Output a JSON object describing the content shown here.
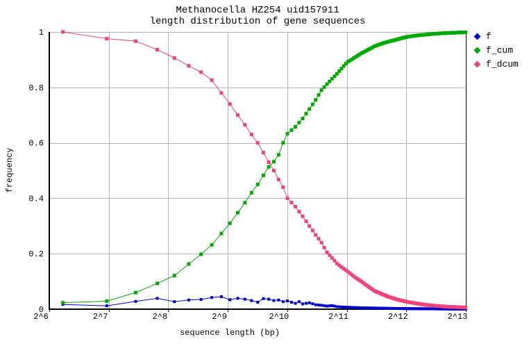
{
  "title": {
    "line1": "Methanocella HZ254 uid157911",
    "line2": "length distribution of gene sequences"
  },
  "axes": {
    "x_label": "sequence length (bp)",
    "y_label": "frequency",
    "x_ticks": [
      {
        "label": "2^6",
        "exp": 6
      },
      {
        "label": "2^7",
        "exp": 7
      },
      {
        "label": "2^8",
        "exp": 8
      },
      {
        "label": "2^9",
        "exp": 9
      },
      {
        "label": "2^10",
        "exp": 10
      },
      {
        "label": "2^11",
        "exp": 11
      },
      {
        "label": "2^12",
        "exp": 12
      },
      {
        "label": "2^13",
        "exp": 13
      }
    ],
    "y_ticks": [
      {
        "label": "1",
        "value": 1
      },
      {
        "label": "0.8",
        "value": 0.8
      },
      {
        "label": "0.6",
        "value": 0.6
      },
      {
        "label": "0.4",
        "value": 0.4
      },
      {
        "label": "0.2",
        "value": 0.2
      },
      {
        "label": "0",
        "value": 0
      }
    ]
  },
  "legend": [
    {
      "label": "f",
      "color": "#0000d0"
    },
    {
      "label": "f_cum",
      "color": "#00aa00"
    },
    {
      "label": "f_dcum",
      "color": "#ef4379"
    }
  ],
  "colors": {
    "grid": "#b3b3b3",
    "axis": "#000000",
    "background": "#ffffff"
  },
  "chart_data": {
    "type": "line",
    "title": "Methanocella HZ254 uid157911 - length distribution of gene sequences",
    "xlabel": "sequence length (bp)",
    "ylabel": "frequency",
    "x_scale": "log2",
    "x_range_exp": [
      6,
      13
    ],
    "y_range": [
      0,
      1
    ],
    "grid": true,
    "legend_position": "top-right-outside",
    "marker": "square",
    "sample_bp": {
      "start": 75,
      "step": 50,
      "end": 8175
    },
    "series": [
      {
        "name": "f",
        "color": "#0000d0",
        "marker_size": 4,
        "anchors": [
          [
            75,
            0.017
          ],
          [
            125,
            0.012
          ],
          [
            175,
            0.028
          ],
          [
            225,
            0.039
          ],
          [
            275,
            0.027
          ],
          [
            325,
            0.033
          ],
          [
            375,
            0.035
          ],
          [
            425,
            0.042
          ],
          [
            475,
            0.045
          ],
          [
            525,
            0.034
          ],
          [
            575,
            0.039
          ],
          [
            625,
            0.036
          ],
          [
            675,
            0.031
          ],
          [
            725,
            0.025
          ],
          [
            775,
            0.038
          ],
          [
            825,
            0.036
          ],
          [
            875,
            0.031
          ],
          [
            925,
            0.033
          ],
          [
            975,
            0.027
          ],
          [
            1025,
            0.03
          ],
          [
            1075,
            0.025
          ],
          [
            1125,
            0.021
          ],
          [
            1175,
            0.027
          ],
          [
            1225,
            0.019
          ],
          [
            1325,
            0.023
          ],
          [
            1425,
            0.016
          ],
          [
            1525,
            0.014
          ],
          [
            1625,
            0.011
          ],
          [
            1725,
            0.013
          ],
          [
            1825,
            0.009
          ],
          [
            1925,
            0.008
          ],
          [
            2050,
            0.007
          ],
          [
            2425,
            0.005
          ],
          [
            2825,
            0.004
          ],
          [
            3325,
            0.003
          ],
          [
            4100,
            0.002
          ],
          [
            5075,
            0.0015
          ],
          [
            6075,
            0.001
          ],
          [
            7075,
            0.0008
          ],
          [
            8175,
            0.0005
          ]
        ]
      },
      {
        "name": "f_cum",
        "color": "#00aa00",
        "marker_size": 5,
        "anchors": [
          [
            75,
            0.023
          ],
          [
            125,
            0.029
          ],
          [
            175,
            0.06
          ],
          [
            225,
            0.093
          ],
          [
            275,
            0.121
          ],
          [
            325,
            0.163
          ],
          [
            375,
            0.198
          ],
          [
            425,
            0.232
          ],
          [
            475,
            0.273
          ],
          [
            525,
            0.31
          ],
          [
            575,
            0.348
          ],
          [
            625,
            0.384
          ],
          [
            675,
            0.42
          ],
          [
            725,
            0.45
          ],
          [
            775,
            0.483
          ],
          [
            825,
            0.513
          ],
          [
            875,
            0.532
          ],
          [
            925,
            0.557
          ],
          [
            975,
            0.6
          ],
          [
            1025,
            0.633
          ],
          [
            1125,
            0.658
          ],
          [
            1225,
            0.688
          ],
          [
            1325,
            0.722
          ],
          [
            1425,
            0.755
          ],
          [
            1525,
            0.79
          ],
          [
            1625,
            0.812
          ],
          [
            1725,
            0.831
          ],
          [
            1825,
            0.849
          ],
          [
            1925,
            0.868
          ],
          [
            2050,
            0.89
          ],
          [
            2225,
            0.906
          ],
          [
            2425,
            0.923
          ],
          [
            2625,
            0.936
          ],
          [
            2825,
            0.948
          ],
          [
            3075,
            0.958
          ],
          [
            3325,
            0.965
          ],
          [
            3675,
            0.973
          ],
          [
            4100,
            0.982
          ],
          [
            4575,
            0.987
          ],
          [
            5075,
            0.99
          ],
          [
            5575,
            0.993
          ],
          [
            6075,
            0.995
          ],
          [
            6575,
            0.996
          ],
          [
            7075,
            0.997
          ],
          [
            7575,
            0.998
          ],
          [
            8175,
            0.999
          ]
        ]
      },
      {
        "name": "f_dcum",
        "color": "#ef4379",
        "marker_size": 5,
        "anchors": [
          [
            75,
            1.0
          ],
          [
            125,
            0.976
          ],
          [
            175,
            0.967
          ],
          [
            225,
            0.936
          ],
          [
            275,
            0.906
          ],
          [
            325,
            0.878
          ],
          [
            375,
            0.855
          ],
          [
            425,
            0.826
          ],
          [
            475,
            0.78
          ],
          [
            525,
            0.74
          ],
          [
            575,
            0.7
          ],
          [
            625,
            0.665
          ],
          [
            675,
            0.63
          ],
          [
            725,
            0.6
          ],
          [
            775,
            0.565
          ],
          [
            825,
            0.53
          ],
          [
            875,
            0.5
          ],
          [
            925,
            0.468
          ],
          [
            975,
            0.44
          ],
          [
            1025,
            0.4
          ],
          [
            1125,
            0.37
          ],
          [
            1225,
            0.335
          ],
          [
            1325,
            0.3
          ],
          [
            1425,
            0.268
          ],
          [
            1525,
            0.24
          ],
          [
            1625,
            0.205
          ],
          [
            1725,
            0.185
          ],
          [
            1825,
            0.165
          ],
          [
            1925,
            0.152
          ],
          [
            2050,
            0.138
          ],
          [
            2225,
            0.118
          ],
          [
            2425,
            0.1
          ],
          [
            2625,
            0.082
          ],
          [
            2825,
            0.066
          ],
          [
            3075,
            0.055
          ],
          [
            3325,
            0.045
          ],
          [
            3675,
            0.035
          ],
          [
            4100,
            0.027
          ],
          [
            4575,
            0.021
          ],
          [
            5075,
            0.016
          ],
          [
            5575,
            0.013
          ],
          [
            6075,
            0.011
          ],
          [
            6575,
            0.009
          ],
          [
            7075,
            0.008
          ],
          [
            7575,
            0.007
          ],
          [
            8175,
            0.006
          ]
        ]
      }
    ]
  }
}
